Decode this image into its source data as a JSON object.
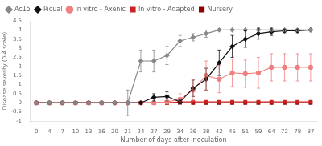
{
  "chart_data": {
    "type": "line",
    "x_label": "Number of days after inoculation",
    "y_label": "Disease severity (0-4 scale)",
    "categories": [
      "0",
      "4",
      "7",
      "10",
      "13",
      "16",
      "20",
      "21",
      "24",
      "27",
      "29",
      "34",
      "36",
      "38",
      "42",
      "45",
      "51",
      "59",
      "64",
      "72",
      "78",
      "87"
    ],
    "series": [
      {
        "name": "Ac15",
        "color": "#888888",
        "marker": "diamond",
        "line_style": "solid",
        "values": [
          0,
          0,
          0,
          0,
          0,
          0,
          0,
          0.0,
          2.3,
          2.3,
          2.6,
          3.4,
          3.6,
          3.8,
          4.0,
          4.0,
          4.0,
          4.0,
          4.0,
          4.0,
          4.0,
          4.0
        ],
        "errors": [
          0,
          0,
          0,
          0,
          0,
          0,
          0,
          0.7,
          0.6,
          0.6,
          0.5,
          0.3,
          0.2,
          0.2,
          0.0,
          0.0,
          0.0,
          0.0,
          0.0,
          0.0,
          0.0,
          0.0
        ]
      },
      {
        "name": "Picual",
        "color": "#111111",
        "marker": "diamond",
        "line_style": "solid",
        "values": [
          0,
          0,
          0,
          0,
          0,
          0,
          0,
          0,
          0.0,
          0.3,
          0.35,
          0.05,
          0.8,
          1.3,
          2.2,
          3.1,
          3.5,
          3.8,
          3.9,
          3.95,
          3.95,
          4.0
        ],
        "errors": [
          0,
          0,
          0,
          0,
          0,
          0,
          0,
          0,
          0.0,
          0.2,
          0.25,
          0.1,
          0.45,
          0.6,
          0.7,
          0.6,
          0.45,
          0.3,
          0.2,
          0.1,
          0.1,
          0.0
        ]
      },
      {
        "name": "In vitro - Axenic",
        "color": "#f08080",
        "marker": "circle",
        "line_style": "solid",
        "values": [
          0,
          0,
          0,
          0,
          0,
          0,
          0,
          0,
          0,
          0.0,
          0.05,
          0.2,
          0.7,
          1.5,
          1.3,
          1.65,
          1.6,
          1.65,
          1.95,
          1.95,
          1.95,
          1.95
        ],
        "errors": [
          0,
          0,
          0,
          0,
          0,
          0,
          0,
          0,
          0,
          0.0,
          0.05,
          0.3,
          0.6,
          0.8,
          0.75,
          0.75,
          0.75,
          0.85,
          0.75,
          0.75,
          0.75,
          0.75
        ]
      },
      {
        "name": "In vitro - Adapted",
        "color": "#cc2222",
        "marker": "square",
        "line_style": "solid",
        "values": [
          0,
          0,
          0,
          0,
          0,
          0,
          0,
          0,
          0,
          0,
          0,
          0.05,
          0.05,
          0.05,
          0.05,
          0.05,
          0.05,
          0.05,
          0.05,
          0.05,
          0.05,
          0.05
        ],
        "errors": [
          0,
          0,
          0,
          0,
          0,
          0,
          0,
          0,
          0,
          0,
          0,
          0.04,
          0.04,
          0.04,
          0.04,
          0.04,
          0.04,
          0.04,
          0.04,
          0.04,
          0.04,
          0.04
        ]
      },
      {
        "name": "Nursery",
        "color": "#8b0000",
        "marker": "square",
        "line_style": "solid",
        "values": [
          0,
          0,
          0,
          0,
          0,
          0,
          0,
          0,
          0,
          0,
          0,
          0,
          0,
          0,
          0,
          0,
          0,
          0,
          0,
          0,
          0,
          0
        ],
        "errors": [
          0,
          0,
          0,
          0,
          0,
          0,
          0,
          0,
          0,
          0,
          0,
          0,
          0,
          0,
          0,
          0,
          0,
          0,
          0,
          0,
          0,
          0
        ]
      }
    ],
    "ylim": [
      -1,
      4.5
    ],
    "yticks": [
      -1,
      -0.5,
      0,
      0.5,
      1,
      1.5,
      2,
      2.5,
      3,
      3.5,
      4,
      4.5
    ],
    "grid": false,
    "legend": "upper left"
  }
}
